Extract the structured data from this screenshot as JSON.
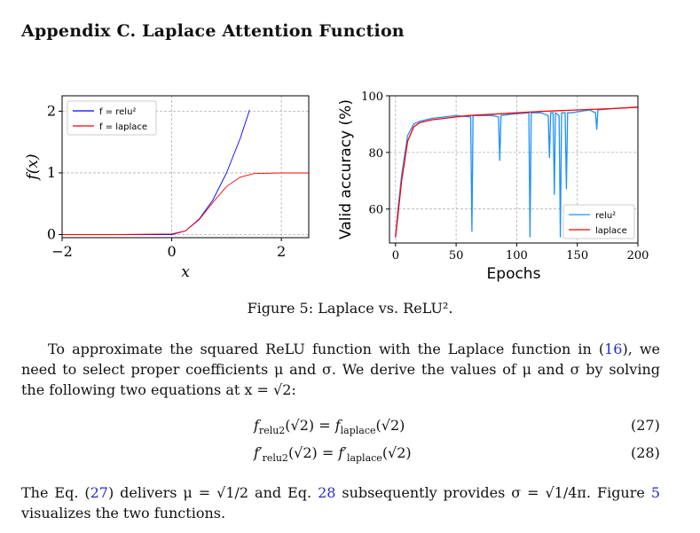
{
  "section": {
    "title": "Appendix C. Laplace Attention Function"
  },
  "figure": {
    "left_plot": {
      "ylabel": "f(x)",
      "xlabel": "x",
      "xticks": [
        "−2",
        "0",
        "2"
      ],
      "yticks": [
        "0",
        "1",
        "2"
      ],
      "legend": [
        "f = relu²",
        "f = laplace"
      ]
    },
    "right_plot": {
      "ylabel": "Valid accuracy (%)",
      "xlabel": "Epochs",
      "xticks": [
        "0",
        "50",
        "100",
        "150",
        "200"
      ],
      "yticks": [
        "60",
        "80",
        "100"
      ],
      "legend": [
        "relu²",
        "laplace"
      ]
    },
    "caption": "Figure 5: Laplace vs. ReLU²."
  },
  "chart_data": [
    {
      "type": "line",
      "title": "",
      "xlabel": "x",
      "ylabel": "f(x)",
      "xlim": [
        -2.0,
        2.5
      ],
      "ylim": [
        -0.05,
        2.25
      ],
      "grid": true,
      "legend_position": "top-left",
      "series": [
        {
          "name": "f = relu²",
          "color": "#0000ff",
          "x": [
            -2.0,
            -1.0,
            0.0,
            0.25,
            0.5,
            0.75,
            1.0,
            1.25,
            1.42
          ],
          "y": [
            0,
            0,
            0,
            0.06,
            0.25,
            0.56,
            1.0,
            1.56,
            2.02
          ]
        },
        {
          "name": "f = laplace",
          "color": "#ff0000",
          "x": [
            -2.0,
            -1.0,
            0.0,
            0.25,
            0.5,
            0.75,
            1.0,
            1.25,
            1.5,
            2.0,
            2.5
          ],
          "y": [
            0,
            0,
            0.01,
            0.06,
            0.24,
            0.52,
            0.78,
            0.93,
            0.99,
            1.0,
            1.0
          ]
        }
      ]
    },
    {
      "type": "line",
      "title": "",
      "xlabel": "Epochs",
      "ylabel": "Valid accuracy (%)",
      "xlim": [
        -5,
        200
      ],
      "ylim": [
        48,
        100
      ],
      "grid": true,
      "legend_position": "bottom-right",
      "series": [
        {
          "name": "relu²",
          "color": "#1e90ff",
          "x": [
            0,
            2,
            5,
            10,
            15,
            20,
            30,
            40,
            50,
            62,
            63,
            64,
            70,
            80,
            85,
            86,
            87,
            95,
            110,
            111,
            112,
            120,
            126,
            127,
            128,
            130,
            131,
            132,
            135,
            136,
            137,
            140,
            141,
            142,
            145,
            160,
            165,
            166,
            167,
            180,
            200
          ],
          "y": [
            50,
            60,
            72,
            86,
            90,
            91,
            92,
            92.5,
            93,
            92.5,
            52,
            93,
            93,
            93,
            92.5,
            77,
            93,
            93.5,
            94,
            50,
            94,
            94,
            93,
            78,
            94,
            94,
            65,
            94,
            93,
            50,
            94,
            94,
            67,
            94,
            94,
            95,
            94,
            88,
            95,
            95.5,
            96
          ]
        },
        {
          "name": "laplace",
          "color": "#ff0000",
          "x": [
            0,
            2,
            5,
            10,
            15,
            20,
            30,
            40,
            50,
            60,
            80,
            100,
            120,
            150,
            180,
            200
          ],
          "y": [
            50,
            58,
            70,
            84,
            89,
            90.5,
            91.5,
            92,
            92.5,
            93,
            93.5,
            94,
            94.5,
            95,
            95.5,
            96
          ]
        }
      ]
    }
  ],
  "body": {
    "para1": {
      "a": "To approximate the squared ReLU function with the Laplace function in (",
      "cite": "16",
      "b": "), we need to select proper coefficients μ and σ. We derive the values of μ and σ by solving the following two equations at x = √2:"
    },
    "eq27": {
      "lhs_f": "f",
      "lhs_sub": "relu2",
      "lhs_arg": "(√2)",
      "eq": " = ",
      "rhs_f": "f",
      "rhs_sub": "laplace",
      "rhs_arg": "(√2)",
      "num": "(27)"
    },
    "eq28": {
      "lhs_f": "f′",
      "lhs_sub": "relu2",
      "lhs_arg": "(√2)",
      "eq": " = ",
      "rhs_f": "f′",
      "rhs_sub": "laplace",
      "rhs_arg": "(√2)",
      "num": "(28)"
    },
    "para2": {
      "a": "The Eq. (",
      "cite1": "27",
      "b": ") delivers μ = √1/2 and Eq. ",
      "cite2": "28",
      "c": " subsequently provides σ = √1/4π. Figure ",
      "cite3": "5",
      "d": " visualizes the two functions."
    }
  }
}
